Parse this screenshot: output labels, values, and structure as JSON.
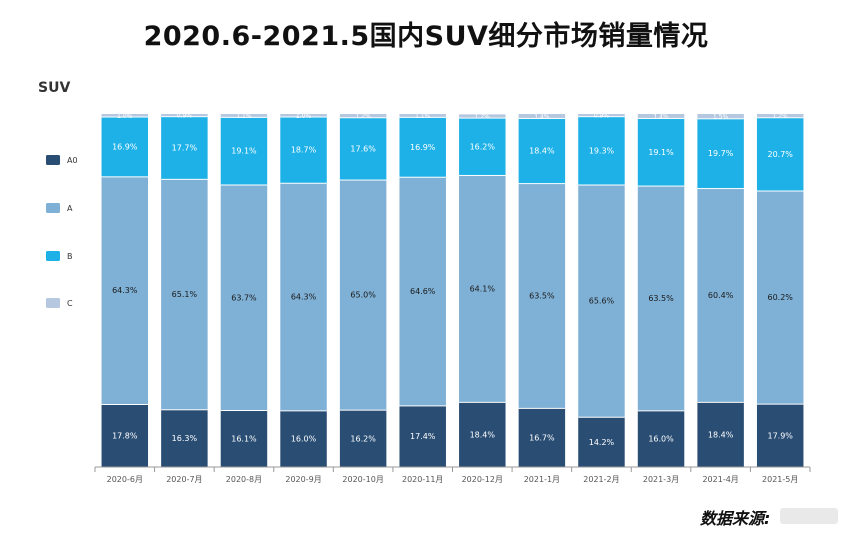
{
  "title": "2020.6-2021.5国内SUV细分市场销量情况",
  "source_label": "数据来源:",
  "colors": {
    "A0": "#2a4d74",
    "A": "#7fb0d5",
    "B": "#1db1e7",
    "C": "#b6c8e0",
    "label_light": "#ffffff",
    "label_dark": "#1a1a1a",
    "axis": "#999999",
    "tick_text": "#555555"
  },
  "chart_data": {
    "type": "bar",
    "stacked": true,
    "normalized_percent": true,
    "title": "2020.6-2021.5国内SUV细分市场销量情况",
    "ylabel": "SUV",
    "xlabel": "",
    "ylim": [
      0,
      100
    ],
    "legend_position": "left",
    "categories": [
      "2020-6月",
      "2020-7月",
      "2020-8月",
      "2020-9月",
      "2020-10月",
      "2020-11月",
      "2020-12月",
      "2021-1月",
      "2021-2月",
      "2021-3月",
      "2021-4月",
      "2021-5月"
    ],
    "series": [
      {
        "name": "A0",
        "values": [
          17.8,
          16.3,
          16.1,
          16.0,
          16.2,
          17.4,
          18.4,
          16.7,
          14.2,
          16.0,
          18.4,
          17.9
        ]
      },
      {
        "name": "A",
        "values": [
          64.3,
          65.1,
          63.7,
          64.3,
          65.0,
          64.6,
          64.1,
          63.5,
          65.6,
          63.5,
          60.4,
          60.2
        ]
      },
      {
        "name": "B",
        "values": [
          16.9,
          17.7,
          19.1,
          18.7,
          17.6,
          16.9,
          16.2,
          18.4,
          19.3,
          19.1,
          19.7,
          20.7
        ]
      },
      {
        "name": "C",
        "values": [
          1.0,
          0.9,
          1.1,
          1.0,
          1.2,
          1.1,
          1.2,
          1.4,
          0.9,
          1.4,
          1.5,
          1.2
        ]
      }
    ]
  }
}
